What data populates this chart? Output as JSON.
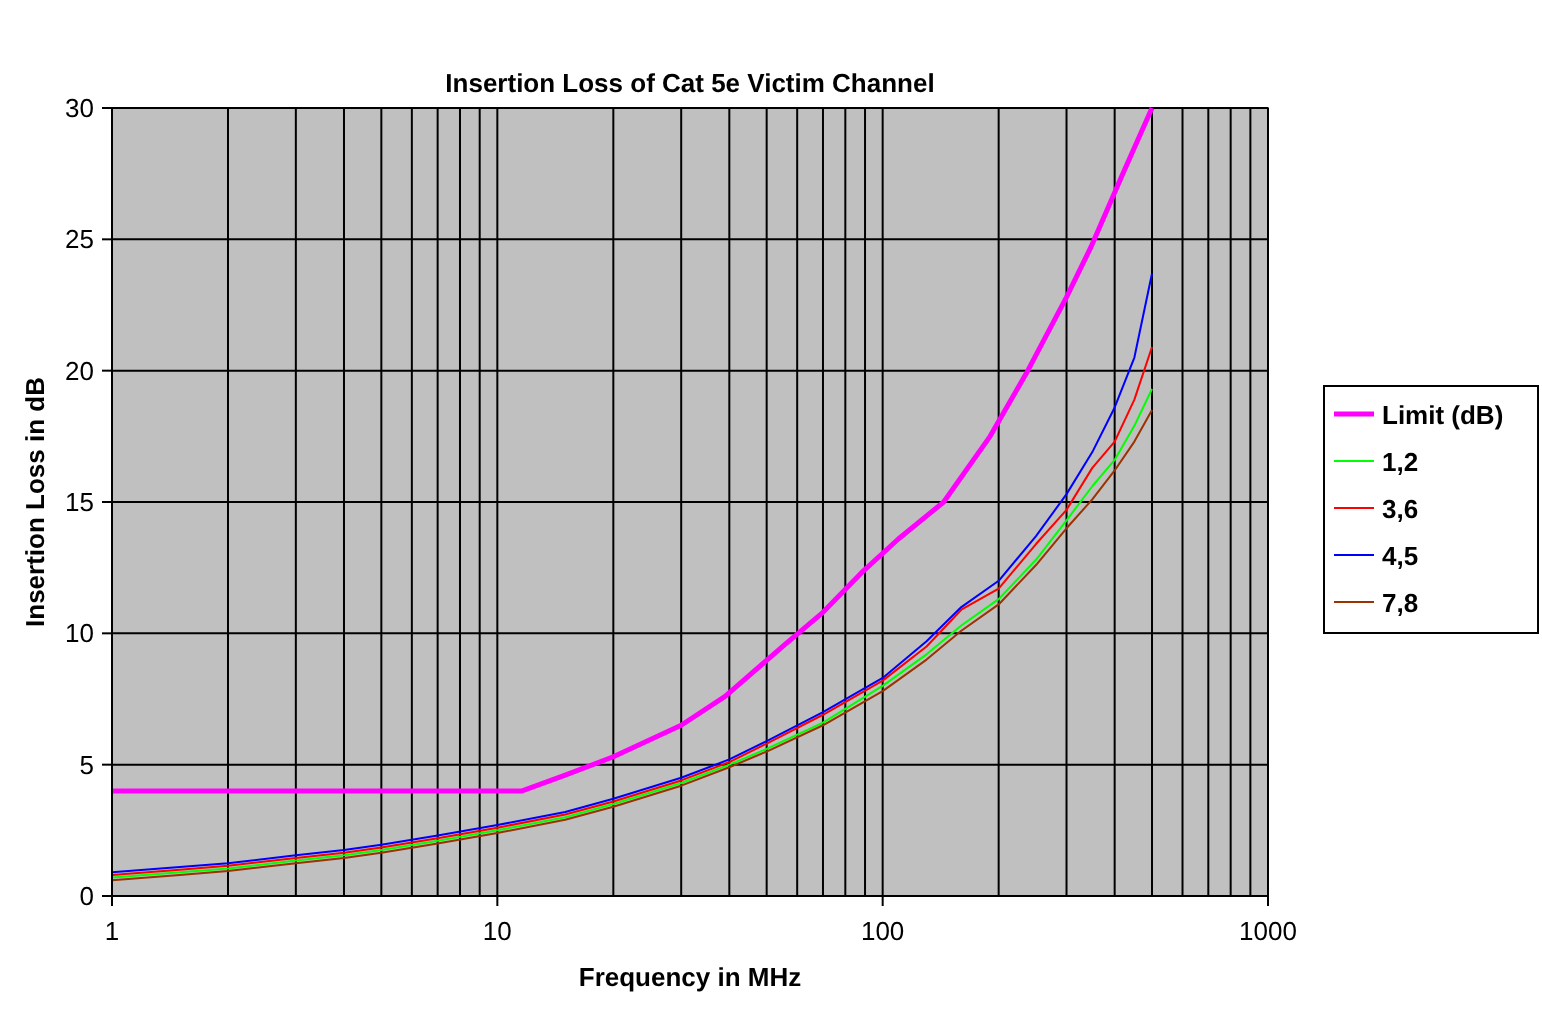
{
  "chart_data": {
    "type": "line",
    "title": "Insertion Loss of Cat 5e Victim Channel",
    "xlabel": "Frequency in MHz",
    "ylabel": "Insertion Loss in dB",
    "log": "x",
    "grid": true,
    "legend": "right",
    "line_style": "solid",
    "marker": "none",
    "xlim": [
      1,
      1000
    ],
    "xticks": [
      1,
      {
        "value": 2,
        "label": null
      },
      {
        "value": 3,
        "label": null
      },
      {
        "value": 4,
        "label": null
      },
      {
        "value": 5,
        "label": null
      },
      {
        "value": 6,
        "label": null
      },
      {
        "value": 7,
        "label": null
      },
      {
        "value": 8,
        "label": null
      },
      {
        "value": 9,
        "label": null
      },
      10,
      {
        "value": 20,
        "label": null
      },
      {
        "value": 30,
        "label": null
      },
      {
        "value": 40,
        "label": null
      },
      {
        "value": 50,
        "label": null
      },
      {
        "value": 60,
        "label": null
      },
      {
        "value": 70,
        "label": null
      },
      {
        "value": 80,
        "label": null
      },
      {
        "value": 90,
        "label": null
      },
      100,
      {
        "value": 200,
        "label": null
      },
      {
        "value": 300,
        "label": null
      },
      {
        "value": 400,
        "label": null
      },
      {
        "value": 500,
        "label": null
      },
      {
        "value": 600,
        "label": null
      },
      {
        "value": 700,
        "label": null
      },
      {
        "value": 800,
        "label": null
      },
      {
        "value": 900,
        "label": null
      },
      1000
    ],
    "ylim": [
      0,
      30
    ],
    "yticks": [
      0,
      5,
      10,
      15,
      20,
      25,
      30
    ],
    "x": [
      1,
      1.5,
      2,
      3,
      4,
      5,
      7,
      10,
      15,
      20,
      30,
      40,
      50,
      70,
      100,
      130,
      160,
      200,
      250,
      300,
      350,
      400,
      450,
      500
    ],
    "series": [
      {
        "name": "Limit (dB)",
        "color": "#ff00ff",
        "x": [
          1,
          11.6,
          15,
          20,
          30,
          39,
          56,
          70,
          88,
          110,
          144,
          190,
          238,
          300,
          347,
          420,
          500
        ],
        "values": [
          4,
          4,
          4.6,
          5.3,
          6.5,
          7.6,
          9.6,
          10.8,
          12.3,
          13.6,
          15,
          17.5,
          20,
          22.8,
          24.7,
          27.5,
          30
        ]
      },
      {
        "name": "1,2",
        "color": "#00ff00",
        "values": [
          0.7,
          0.9,
          1.05,
          1.35,
          1.55,
          1.75,
          2.1,
          2.5,
          3,
          3.5,
          4.3,
          5,
          5.6,
          6.6,
          8,
          9.2,
          10.3,
          11.3,
          12.8,
          14.3,
          15.6,
          16.6,
          17.9,
          19.3
        ]
      },
      {
        "name": "3,6",
        "color": "#ff0000",
        "values": [
          0.8,
          1,
          1.15,
          1.45,
          1.65,
          1.85,
          2.2,
          2.6,
          3.1,
          3.6,
          4.4,
          5.1,
          5.8,
          6.9,
          8.2,
          9.5,
          10.9,
          11.7,
          13.4,
          14.7,
          16.3,
          17.3,
          18.9,
          20.9
        ]
      },
      {
        "name": "4,5",
        "color": "#0000ff",
        "values": [
          0.9,
          1.1,
          1.25,
          1.55,
          1.75,
          1.95,
          2.3,
          2.7,
          3.2,
          3.7,
          4.5,
          5.2,
          5.9,
          7,
          8.3,
          9.7,
          11,
          12,
          13.7,
          15.3,
          16.9,
          18.6,
          20.5,
          23.7
        ]
      },
      {
        "name": "7,8",
        "color": "#993300",
        "values": [
          0.6,
          0.8,
          0.95,
          1.25,
          1.45,
          1.65,
          2,
          2.4,
          2.9,
          3.4,
          4.2,
          4.9,
          5.5,
          6.5,
          7.8,
          9,
          10.1,
          11.1,
          12.6,
          14,
          15.1,
          16.2,
          17.3,
          18.5
        ]
      }
    ]
  }
}
